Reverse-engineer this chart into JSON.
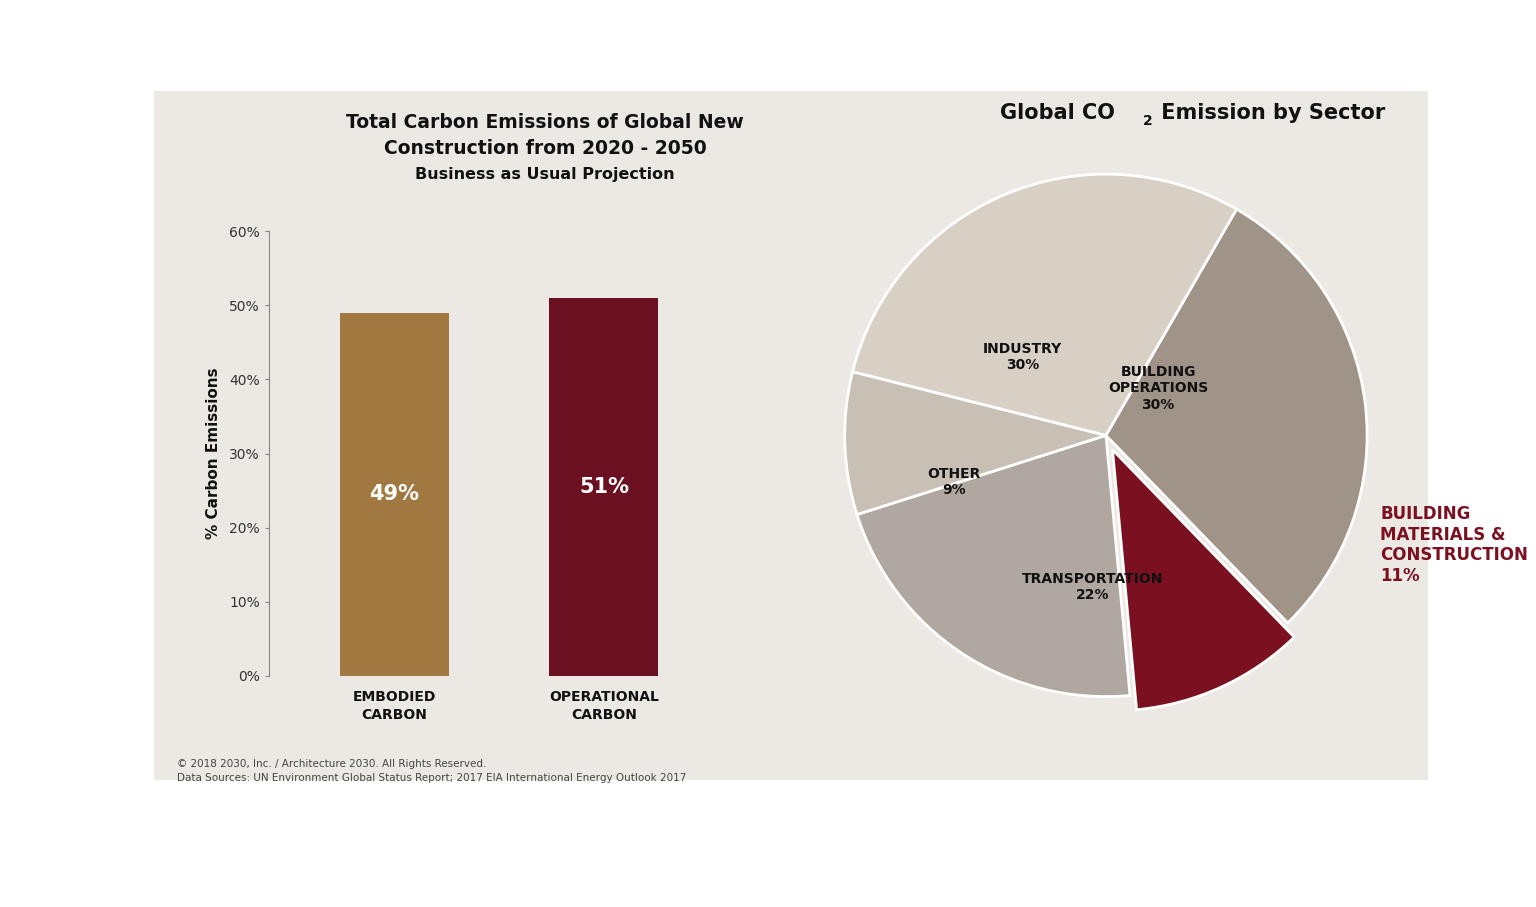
{
  "bg_color": "#ece8e3",
  "outer_bg": "#ffffff",
  "bar_title_line1": "Total Carbon Emissions of Global New",
  "bar_title_line2": "Construction from 2020 - 2050",
  "bar_subtitle": "Business as Usual Projection",
  "bar_categories": [
    "EMBODIED\nCARBON",
    "OPERATIONAL\nCARBON"
  ],
  "bar_values": [
    49,
    51
  ],
  "bar_colors": [
    "#a07840",
    "#6b1020"
  ],
  "bar_ylabel": "% Carbon Emissions",
  "bar_ylim": [
    0,
    60
  ],
  "bar_yticks": [
    0,
    10,
    20,
    30,
    40,
    50,
    60
  ],
  "bar_ytick_labels": [
    "0%",
    "10%",
    "20%",
    "30%",
    "40%",
    "50%",
    "60%"
  ],
  "bar_label_color": "#ffffff",
  "bar_label_fontsize": 15,
  "pie_title_pre": "Global CO",
  "pie_title_sub": "2",
  "pie_title_post": " Emission by Sector",
  "pie_sectors": [
    "BUILDING\nOPERATIONS\n30%",
    "BUILDING\nMATERIALS &\nCONSTRUCTION\n11%",
    "TRANSPORTATION\n22%",
    "OTHER\n9%",
    "INDUSTRY\n30%"
  ],
  "pie_values": [
    30,
    11,
    22,
    9,
    30
  ],
  "pie_colors": [
    "#a09488",
    "#7a1020",
    "#b0a8a0",
    "#c8c0b5",
    "#d8d0c5"
  ],
  "pie_label_colors": [
    "#111111",
    "#7a1020",
    "#111111",
    "#111111",
    "#111111"
  ],
  "pie_explode": [
    0,
    0.06,
    0,
    0,
    0
  ],
  "footer_text1": "© 2018 2030, Inc. / Architecture 2030. All Rights Reserved.",
  "footer_text2": "Data Sources: UN Environment Global Status Report; 2017 EIA International Energy Outlook 2017"
}
